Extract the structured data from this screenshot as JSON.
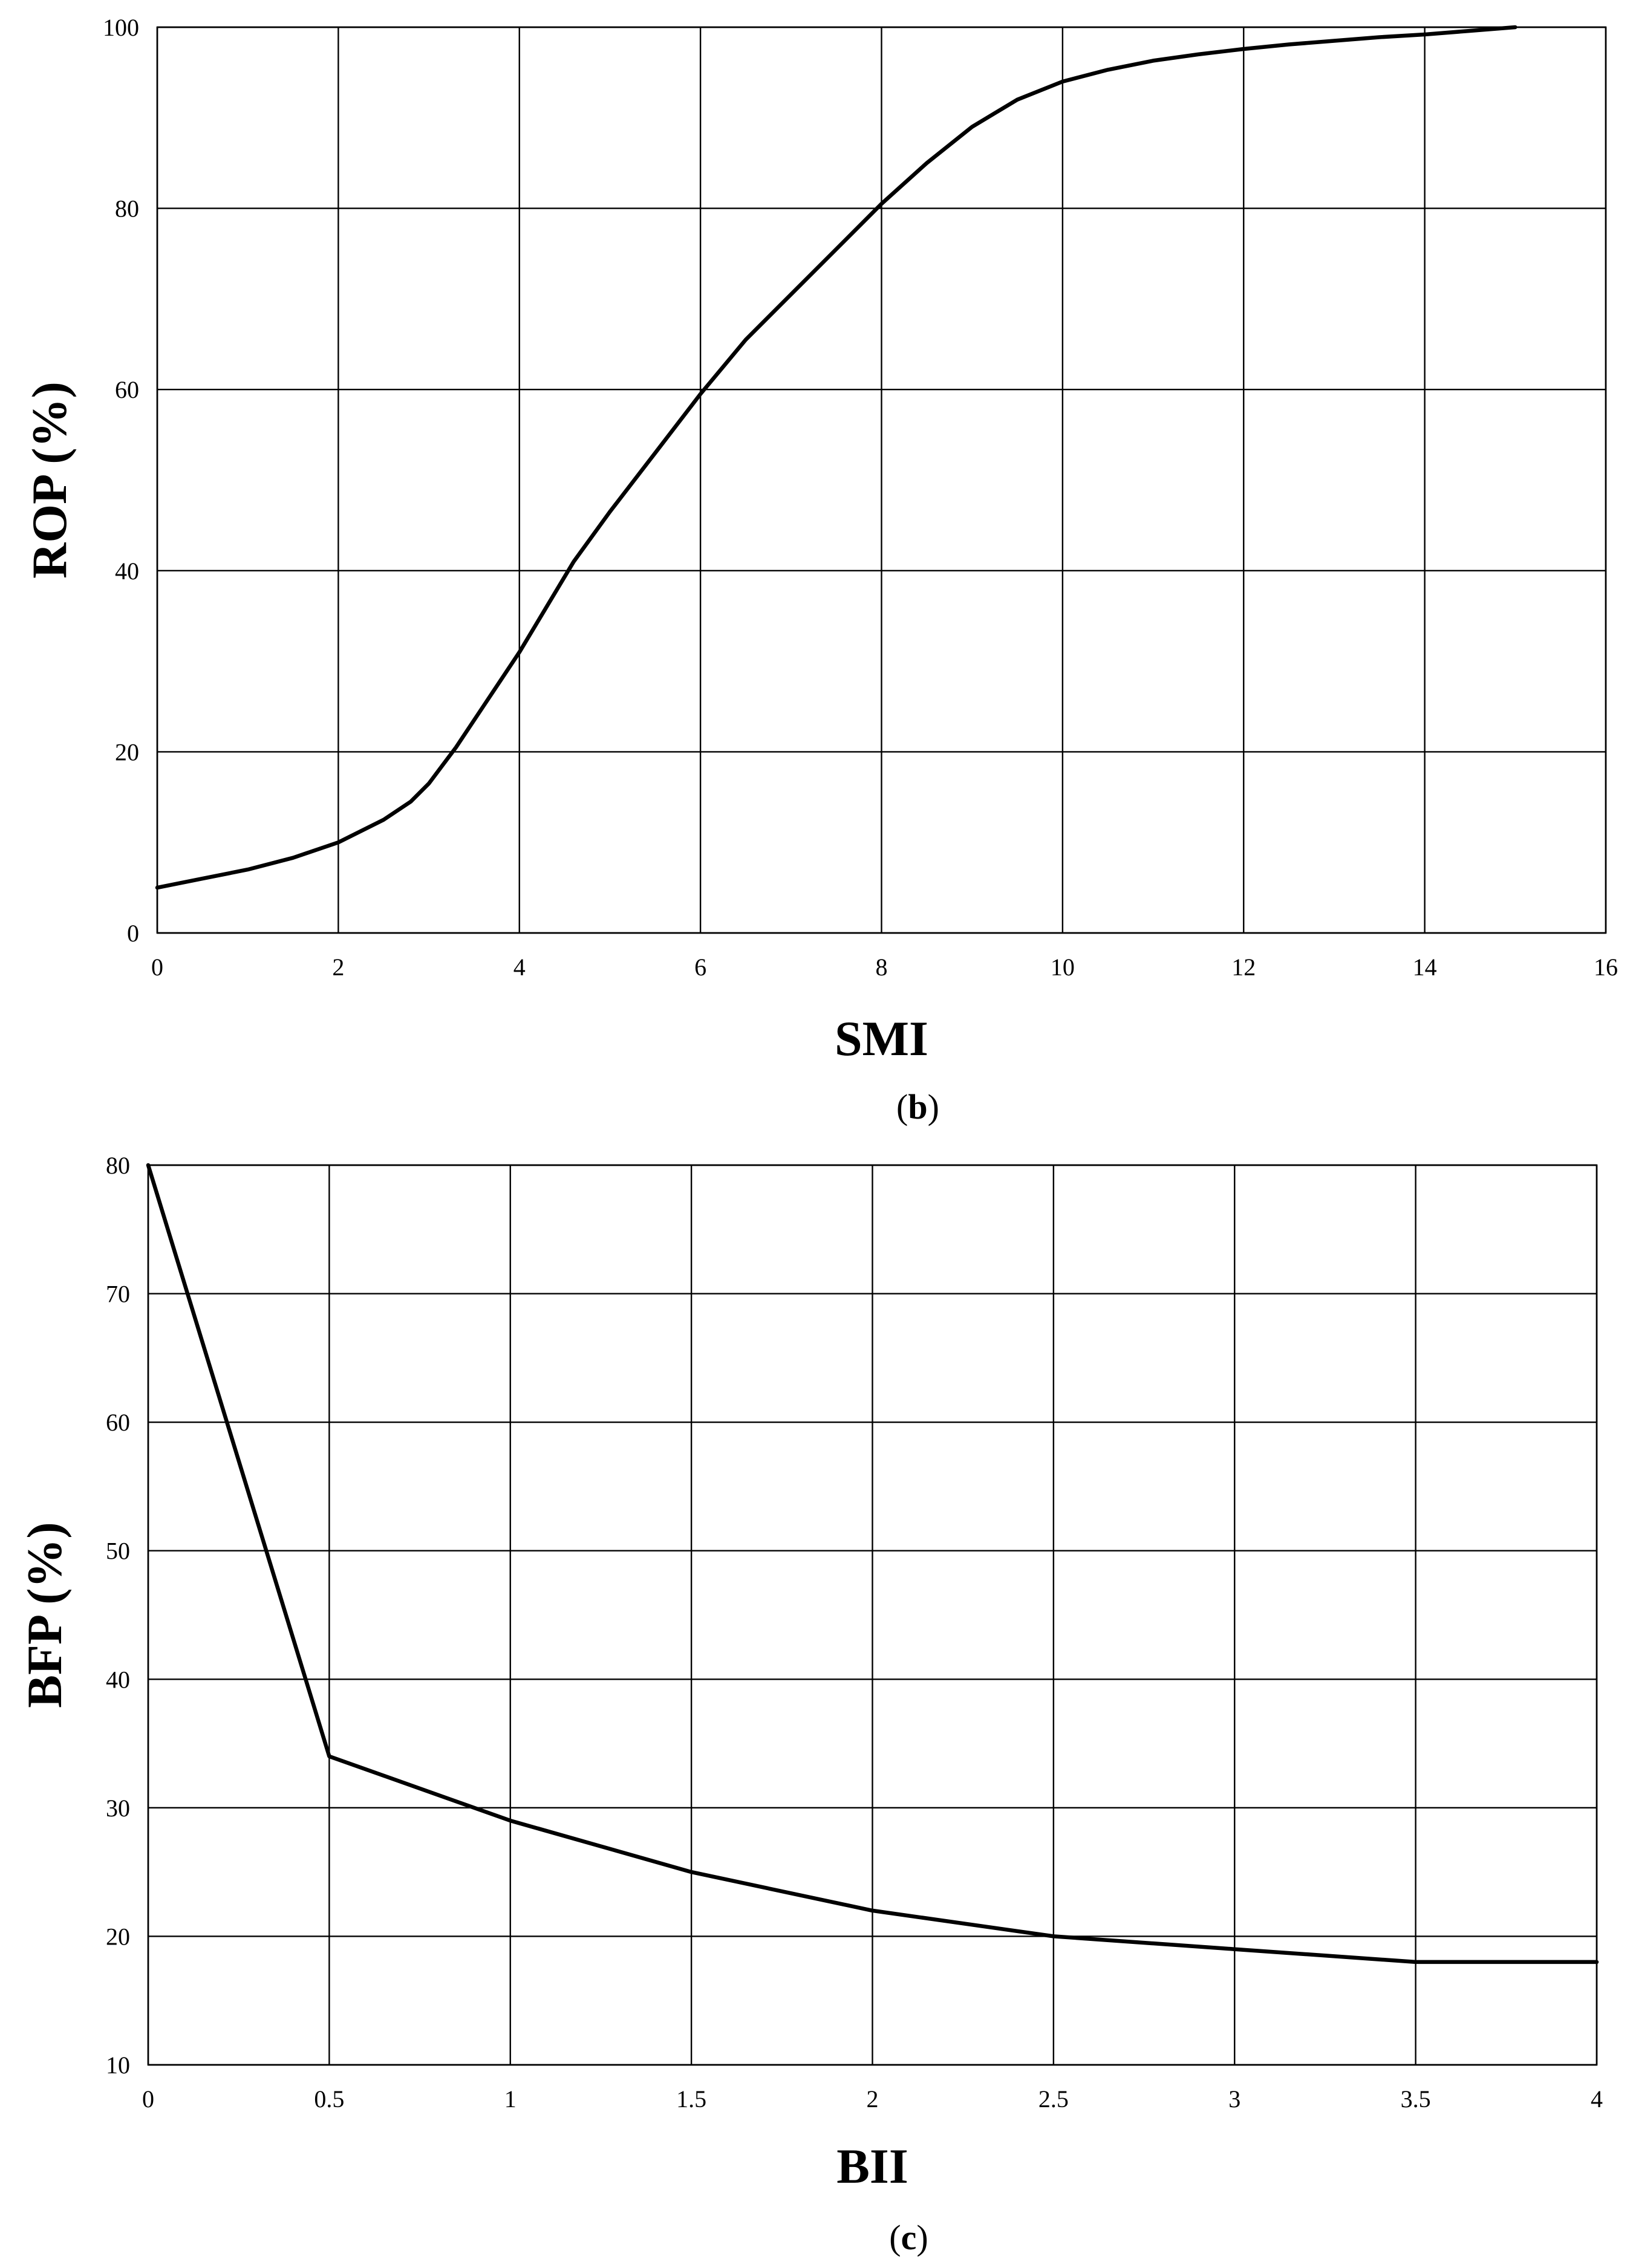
{
  "chart_data": [
    {
      "type": "line",
      "xlabel": "SMI",
      "ylabel": "ROP (%)",
      "caption_letter": "b",
      "xlim": [
        0,
        16
      ],
      "ylim": [
        0,
        100
      ],
      "xticks": [
        0,
        2,
        4,
        6,
        8,
        10,
        12,
        14,
        16
      ],
      "yticks": [
        0,
        20,
        40,
        60,
        80,
        100
      ],
      "grid": true,
      "series": [
        {
          "x": [
            0,
            0.5,
            1,
            1.5,
            2,
            2.5,
            2.8,
            3,
            3.3,
            3.6,
            4,
            4.3,
            4.6,
            5,
            5.5,
            6,
            6.5,
            7,
            7.5,
            8,
            8.5,
            9,
            9.5,
            10,
            10.5,
            11,
            11.5,
            12,
            12.5,
            13,
            13.5,
            14,
            14.5,
            15
          ],
          "y": [
            5,
            6,
            7,
            8.3,
            10,
            12.5,
            14.5,
            16.5,
            20.5,
            25,
            31,
            36,
            41,
            46.5,
            53,
            59.5,
            65.5,
            70.5,
            75.5,
            80.5,
            85,
            89,
            92,
            94,
            95.3,
            96.3,
            97,
            97.6,
            98.1,
            98.5,
            98.9,
            99.2,
            99.6,
            100
          ]
        }
      ]
    },
    {
      "type": "line",
      "xlabel": "BII",
      "ylabel": "BFP (%)",
      "caption_letter": "c",
      "xlim": [
        0,
        4
      ],
      "ylim": [
        10,
        80
      ],
      "xticks": [
        0,
        0.5,
        1,
        1.5,
        2,
        2.5,
        3,
        3.5,
        4
      ],
      "yticks": [
        10,
        20,
        30,
        40,
        50,
        60,
        70,
        80
      ],
      "grid": true,
      "series": [
        {
          "x": [
            0,
            0.5,
            1,
            1.5,
            2,
            2.5,
            3,
            3.5,
            4
          ],
          "y": [
            80,
            34,
            29,
            25,
            22,
            20,
            19,
            18,
            18
          ]
        }
      ]
    }
  ]
}
